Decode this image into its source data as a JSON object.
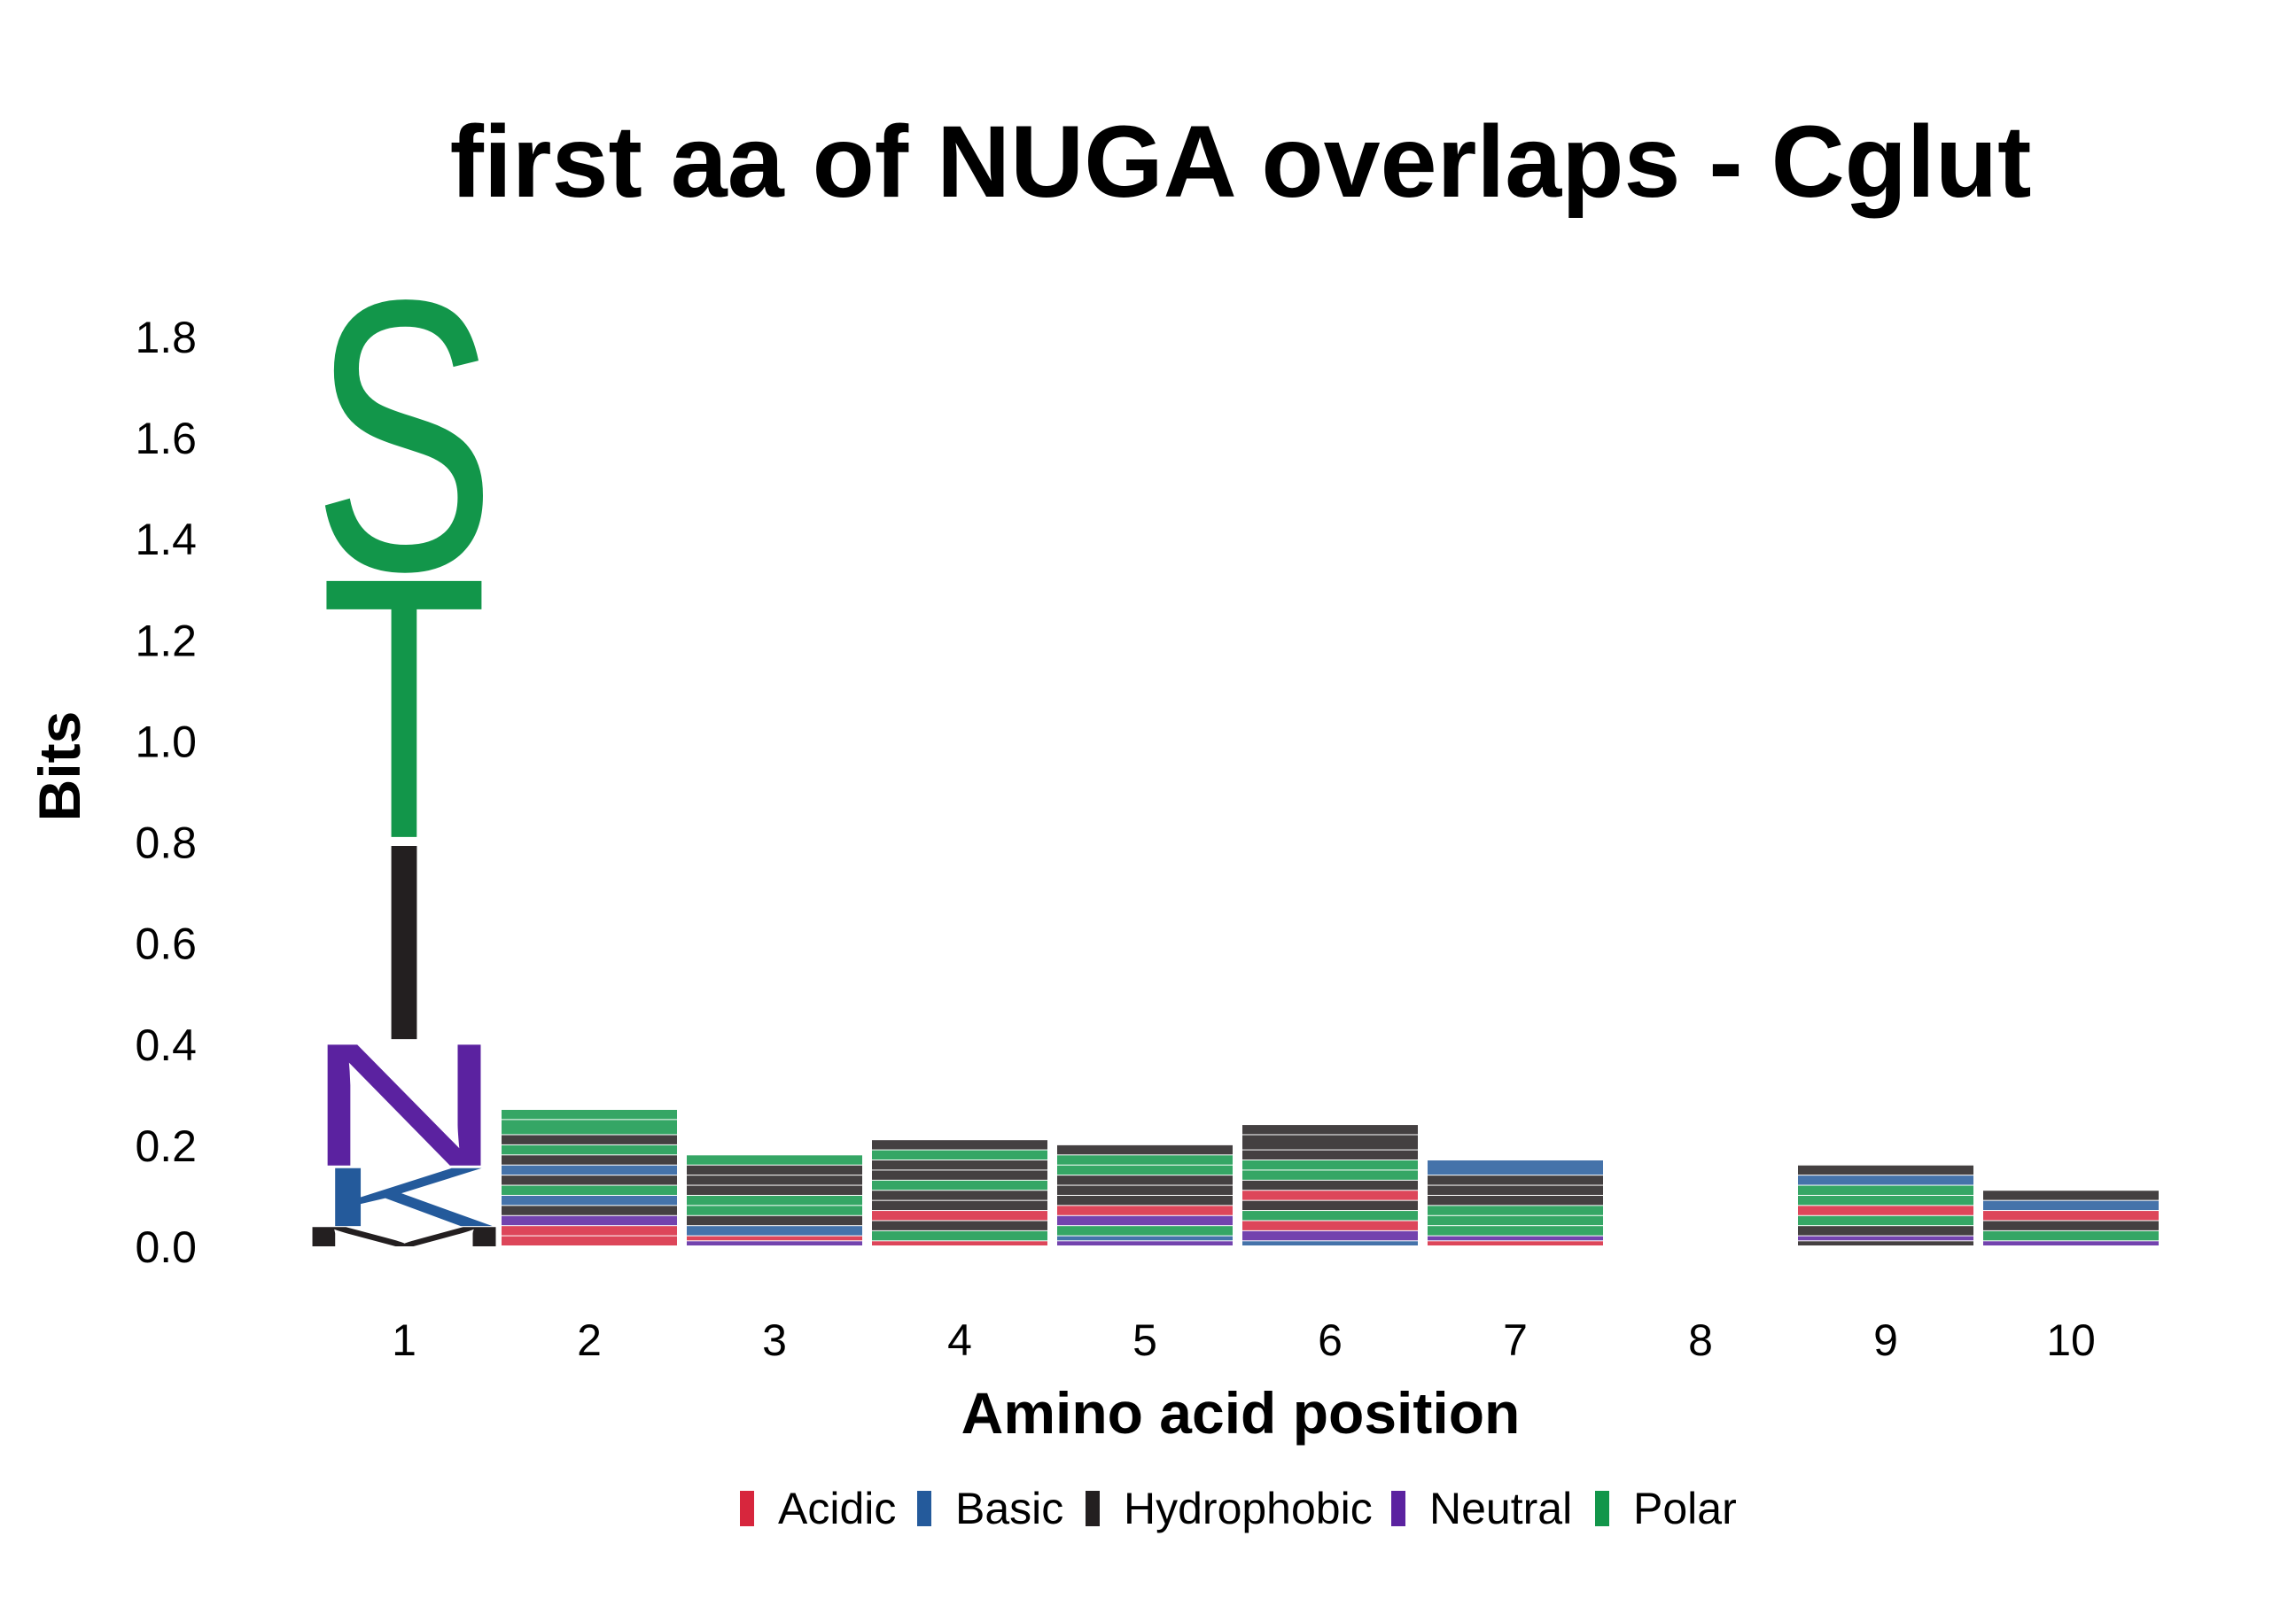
{
  "chart_data": {
    "type": "sequence-logo",
    "title": "first aa of NUGA overlaps - Cglut",
    "xlabel": "Amino acid position",
    "ylabel": "Bits",
    "ylim": [
      0,
      1.9
    ],
    "yticks": [
      "0.0",
      "0.2",
      "0.4",
      "0.6",
      "0.8",
      "1.0",
      "1.2",
      "1.4",
      "1.6",
      "1.8"
    ],
    "xticks": [
      "1",
      "2",
      "3",
      "4",
      "5",
      "6",
      "7",
      "8",
      "9",
      "10"
    ],
    "colors": {
      "Acidic": "#d7263d",
      "Basic": "#245a9b",
      "Hydrophobic": "#231f20",
      "Neutral": "#5b22a0",
      "Polar": "#12964a"
    },
    "legend": [
      "Acidic",
      "Basic",
      "Hydrophobic",
      "Neutral",
      "Polar"
    ],
    "positions": [
      {
        "pos": "1",
        "letters": [
          {
            "aa": "M",
            "bits": 0.04,
            "class": "Hydrophobic"
          },
          {
            "aa": "K",
            "bits": 0.12,
            "class": "Basic"
          },
          {
            "aa": "N",
            "bits": 0.25,
            "class": "Neutral"
          },
          {
            "aa": "I",
            "bits": 0.4,
            "class": "Hydrophobic"
          },
          {
            "aa": "T",
            "bits": 0.53,
            "class": "Polar"
          },
          {
            "aa": "S",
            "bits": 0.55,
            "class": "Polar"
          }
        ]
      },
      {
        "pos": "2",
        "letters": [
          {
            "aa": "D",
            "bits": 0.02,
            "class": "Acidic"
          },
          {
            "aa": "E",
            "bits": 0.02,
            "class": "Acidic"
          },
          {
            "aa": "Q",
            "bits": 0.02,
            "class": "Neutral"
          },
          {
            "aa": "A",
            "bits": 0.02,
            "class": "Hydrophobic"
          },
          {
            "aa": "R",
            "bits": 0.02,
            "class": "Basic"
          },
          {
            "aa": "G",
            "bits": 0.02,
            "class": "Polar"
          },
          {
            "aa": "V",
            "bits": 0.02,
            "class": "Hydrophobic"
          },
          {
            "aa": "K",
            "bits": 0.02,
            "class": "Basic"
          },
          {
            "aa": "L",
            "bits": 0.02,
            "class": "Hydrophobic"
          },
          {
            "aa": "T",
            "bits": 0.02,
            "class": "Polar"
          },
          {
            "aa": "I",
            "bits": 0.02,
            "class": "Hydrophobic"
          },
          {
            "aa": "S",
            "bits": 0.03,
            "class": "Polar"
          },
          {
            "aa": "T",
            "bits": 0.02,
            "class": "Polar"
          }
        ]
      },
      {
        "pos": "3",
        "letters": [
          {
            "aa": "Q",
            "bits": 0.01,
            "class": "Neutral"
          },
          {
            "aa": "D",
            "bits": 0.01,
            "class": "Acidic"
          },
          {
            "aa": "R",
            "bits": 0.02,
            "class": "Basic"
          },
          {
            "aa": "A",
            "bits": 0.02,
            "class": "Hydrophobic"
          },
          {
            "aa": "S",
            "bits": 0.02,
            "class": "Polar"
          },
          {
            "aa": "G",
            "bits": 0.02,
            "class": "Polar"
          },
          {
            "aa": "L",
            "bits": 0.02,
            "class": "Hydrophobic"
          },
          {
            "aa": "V",
            "bits": 0.02,
            "class": "Hydrophobic"
          },
          {
            "aa": "M",
            "bits": 0.02,
            "class": "Hydrophobic"
          },
          {
            "aa": "T",
            "bits": 0.02,
            "class": "Polar"
          }
        ]
      },
      {
        "pos": "4",
        "letters": [
          {
            "aa": "D",
            "bits": 0.01,
            "class": "Acidic"
          },
          {
            "aa": "G",
            "bits": 0.02,
            "class": "Polar"
          },
          {
            "aa": "V",
            "bits": 0.02,
            "class": "Hydrophobic"
          },
          {
            "aa": "E",
            "bits": 0.02,
            "class": "Acidic"
          },
          {
            "aa": "L",
            "bits": 0.02,
            "class": "Hydrophobic"
          },
          {
            "aa": "A",
            "bits": 0.02,
            "class": "Hydrophobic"
          },
          {
            "aa": "T",
            "bits": 0.02,
            "class": "Polar"
          },
          {
            "aa": "I",
            "bits": 0.02,
            "class": "Hydrophobic"
          },
          {
            "aa": "V",
            "bits": 0.02,
            "class": "Hydrophobic"
          },
          {
            "aa": "S",
            "bits": 0.02,
            "class": "Polar"
          },
          {
            "aa": "I",
            "bits": 0.02,
            "class": "Hydrophobic"
          }
        ]
      },
      {
        "pos": "5",
        "letters": [
          {
            "aa": "N",
            "bits": 0.01,
            "class": "Neutral"
          },
          {
            "aa": "K",
            "bits": 0.01,
            "class": "Basic"
          },
          {
            "aa": "G",
            "bits": 0.02,
            "class": "Polar"
          },
          {
            "aa": "Q",
            "bits": 0.02,
            "class": "Neutral"
          },
          {
            "aa": "E",
            "bits": 0.02,
            "class": "Acidic"
          },
          {
            "aa": "L",
            "bits": 0.02,
            "class": "Hydrophobic"
          },
          {
            "aa": "A",
            "bits": 0.02,
            "class": "Hydrophobic"
          },
          {
            "aa": "I",
            "bits": 0.02,
            "class": "Hydrophobic"
          },
          {
            "aa": "T",
            "bits": 0.02,
            "class": "Polar"
          },
          {
            "aa": "S",
            "bits": 0.02,
            "class": "Polar"
          },
          {
            "aa": "A",
            "bits": 0.02,
            "class": "Hydrophobic"
          }
        ]
      },
      {
        "pos": "6",
        "letters": [
          {
            "aa": "K",
            "bits": 0.01,
            "class": "Basic"
          },
          {
            "aa": "N",
            "bits": 0.02,
            "class": "Neutral"
          },
          {
            "aa": "E",
            "bits": 0.02,
            "class": "Acidic"
          },
          {
            "aa": "G",
            "bits": 0.02,
            "class": "Polar"
          },
          {
            "aa": "L",
            "bits": 0.02,
            "class": "Hydrophobic"
          },
          {
            "aa": "D",
            "bits": 0.02,
            "class": "Acidic"
          },
          {
            "aa": "V",
            "bits": 0.02,
            "class": "Hydrophobic"
          },
          {
            "aa": "S",
            "bits": 0.02,
            "class": "Polar"
          },
          {
            "aa": "T",
            "bits": 0.02,
            "class": "Polar"
          },
          {
            "aa": "I",
            "bits": 0.02,
            "class": "Hydrophobic"
          },
          {
            "aa": "A",
            "bits": 0.03,
            "class": "Hydrophobic"
          },
          {
            "aa": "I",
            "bits": 0.02,
            "class": "Hydrophobic"
          }
        ]
      },
      {
        "pos": "7",
        "letters": [
          {
            "aa": "E",
            "bits": 0.01,
            "class": "Acidic"
          },
          {
            "aa": "Q",
            "bits": 0.01,
            "class": "Neutral"
          },
          {
            "aa": "G",
            "bits": 0.02,
            "class": "Polar"
          },
          {
            "aa": "T",
            "bits": 0.02,
            "class": "Polar"
          },
          {
            "aa": "S",
            "bits": 0.02,
            "class": "Polar"
          },
          {
            "aa": "L",
            "bits": 0.02,
            "class": "Hydrophobic"
          },
          {
            "aa": "A",
            "bits": 0.02,
            "class": "Hydrophobic"
          },
          {
            "aa": "I",
            "bits": 0.02,
            "class": "Hydrophobic"
          },
          {
            "aa": "R",
            "bits": 0.03,
            "class": "Basic"
          }
        ]
      },
      {
        "pos": "8",
        "letters": []
      },
      {
        "pos": "9",
        "letters": [
          {
            "aa": "I",
            "bits": 0.01,
            "class": "Hydrophobic"
          },
          {
            "aa": "N",
            "bits": 0.01,
            "class": "Neutral"
          },
          {
            "aa": "L",
            "bits": 0.02,
            "class": "Hydrophobic"
          },
          {
            "aa": "G",
            "bits": 0.02,
            "class": "Polar"
          },
          {
            "aa": "E",
            "bits": 0.02,
            "class": "Acidic"
          },
          {
            "aa": "S",
            "bits": 0.02,
            "class": "Polar"
          },
          {
            "aa": "T",
            "bits": 0.02,
            "class": "Polar"
          },
          {
            "aa": "K",
            "bits": 0.02,
            "class": "Basic"
          },
          {
            "aa": "V",
            "bits": 0.02,
            "class": "Hydrophobic"
          }
        ]
      },
      {
        "pos": "10",
        "letters": [
          {
            "aa": "Q",
            "bits": 0.01,
            "class": "Neutral"
          },
          {
            "aa": "S",
            "bits": 0.02,
            "class": "Polar"
          },
          {
            "aa": "A",
            "bits": 0.02,
            "class": "Hydrophobic"
          },
          {
            "aa": "E",
            "bits": 0.02,
            "class": "Acidic"
          },
          {
            "aa": "K",
            "bits": 0.02,
            "class": "Basic"
          },
          {
            "aa": "V",
            "bits": 0.02,
            "class": "Hydrophobic"
          }
        ]
      }
    ]
  }
}
